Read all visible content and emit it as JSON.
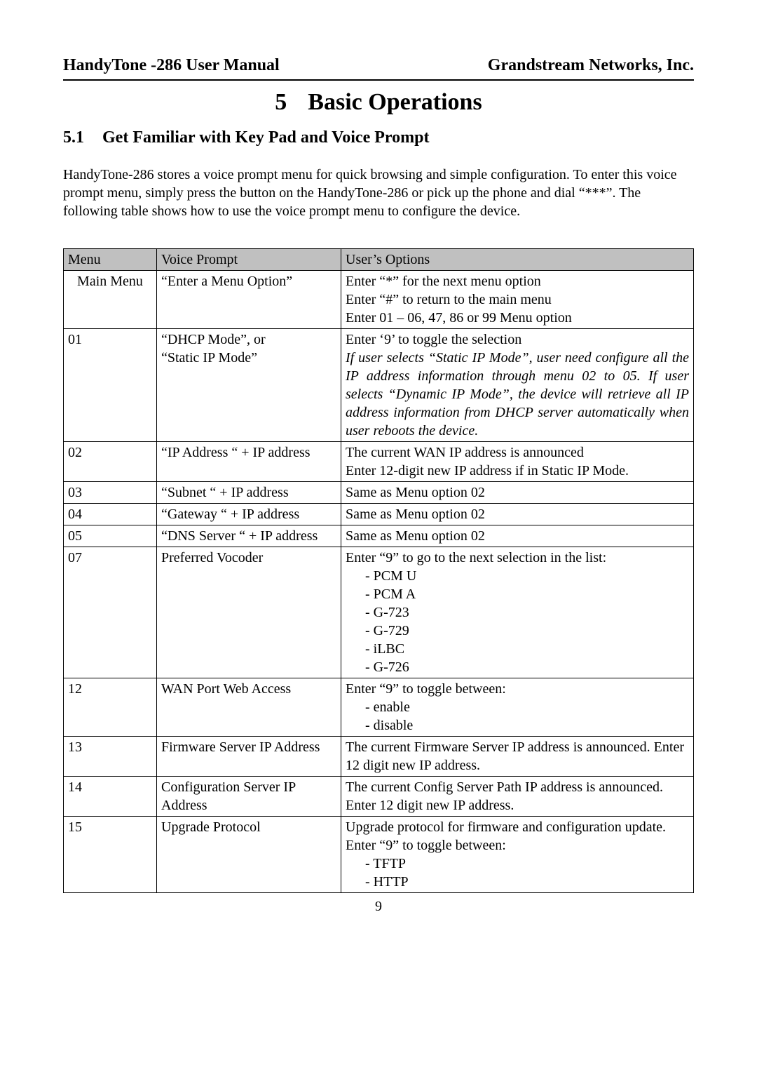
{
  "header": {
    "left": "HandyTone -286 User Manual",
    "right": "Grandstream Networks, Inc."
  },
  "chapter": {
    "number": "5",
    "title": "Basic Operations"
  },
  "section": {
    "number": "5.1",
    "title": "Get Familiar with Key Pad and Voice Prompt"
  },
  "intro": "HandyTone-286 stores a voice prompt menu for quick browsing and simple configuration. To enter this voice prompt menu, simply press the button on the HandyTone-286 or pick up the phone and dial “***”. The following table shows how to use the voice prompt menu to configure the device.",
  "table": {
    "headers": {
      "menu": "Menu",
      "prompt": "Voice Prompt",
      "options": "User’s Options"
    },
    "rows": [
      {
        "menu": "Main Menu",
        "prompt": "“Enter a Menu Option”",
        "options_lines": [
          "Enter “*” for the next menu option",
          "Enter “#” to return to the main menu",
          "Enter 01 – 06, 47, 86 or 99 Menu option"
        ]
      },
      {
        "menu": "01",
        "prompt_lines": [
          "“DHCP Mode”, or",
          "“Static IP Mode”"
        ],
        "options_first": "Enter ‘9’ to toggle the selection",
        "options_italic": "If user selects “Static IP Mode”, user need configure all the IP address information through menu 02 to 05. If user selects “Dynamic IP Mode”, the device will retrieve all IP address information from DHCP server automatically when user reboots the device."
      },
      {
        "menu": "02",
        "prompt": "“IP Address “ + IP address",
        "options_lines": [
          "The current WAN IP address is announced",
          "Enter 12-digit new IP address if in Static IP Mode."
        ],
        "options_justify_idx": 1
      },
      {
        "menu": "03",
        "prompt": "“Subnet “ + IP address",
        "options": "Same as Menu option 02"
      },
      {
        "menu": "04",
        "prompt": "“Gateway “ + IP address",
        "options": "Same as Menu option 02"
      },
      {
        "menu": "05",
        "prompt": "“DNS Server “ + IP address",
        "options": "Same as Menu option 02"
      },
      {
        "menu": "07",
        "prompt": "Preferred Vocoder",
        "options_first": "Enter “9” to go to the next selection in the list:",
        "options_list": [
          "- PCM U",
          "- PCM A",
          "- G-723",
          "- G-729",
          "- iLBC",
          "- G-726"
        ]
      },
      {
        "menu": "12",
        "prompt": "WAN Port Web Access",
        "options_first": "Enter “9” to toggle between:",
        "options_list": [
          "- enable",
          "- disable"
        ]
      },
      {
        "menu": "13",
        "prompt": "Firmware Server IP Address",
        "options": "The current Firmware Server IP address is announced. Enter 12 digit new IP address."
      },
      {
        "menu": "14",
        "prompt": "Configuration Server IP Address",
        "options": "The current Config Server Path IP address is announced. Enter 12 digit new IP address."
      },
      {
        "menu": "15",
        "prompt": "Upgrade Protocol",
        "options_first": "Upgrade protocol for firmware and configuration update. Enter “9” to toggle between:",
        "options_list": [
          "- TFTP",
          "- HTTP"
        ]
      }
    ]
  },
  "page_number": "9",
  "edit_mark": ""
}
